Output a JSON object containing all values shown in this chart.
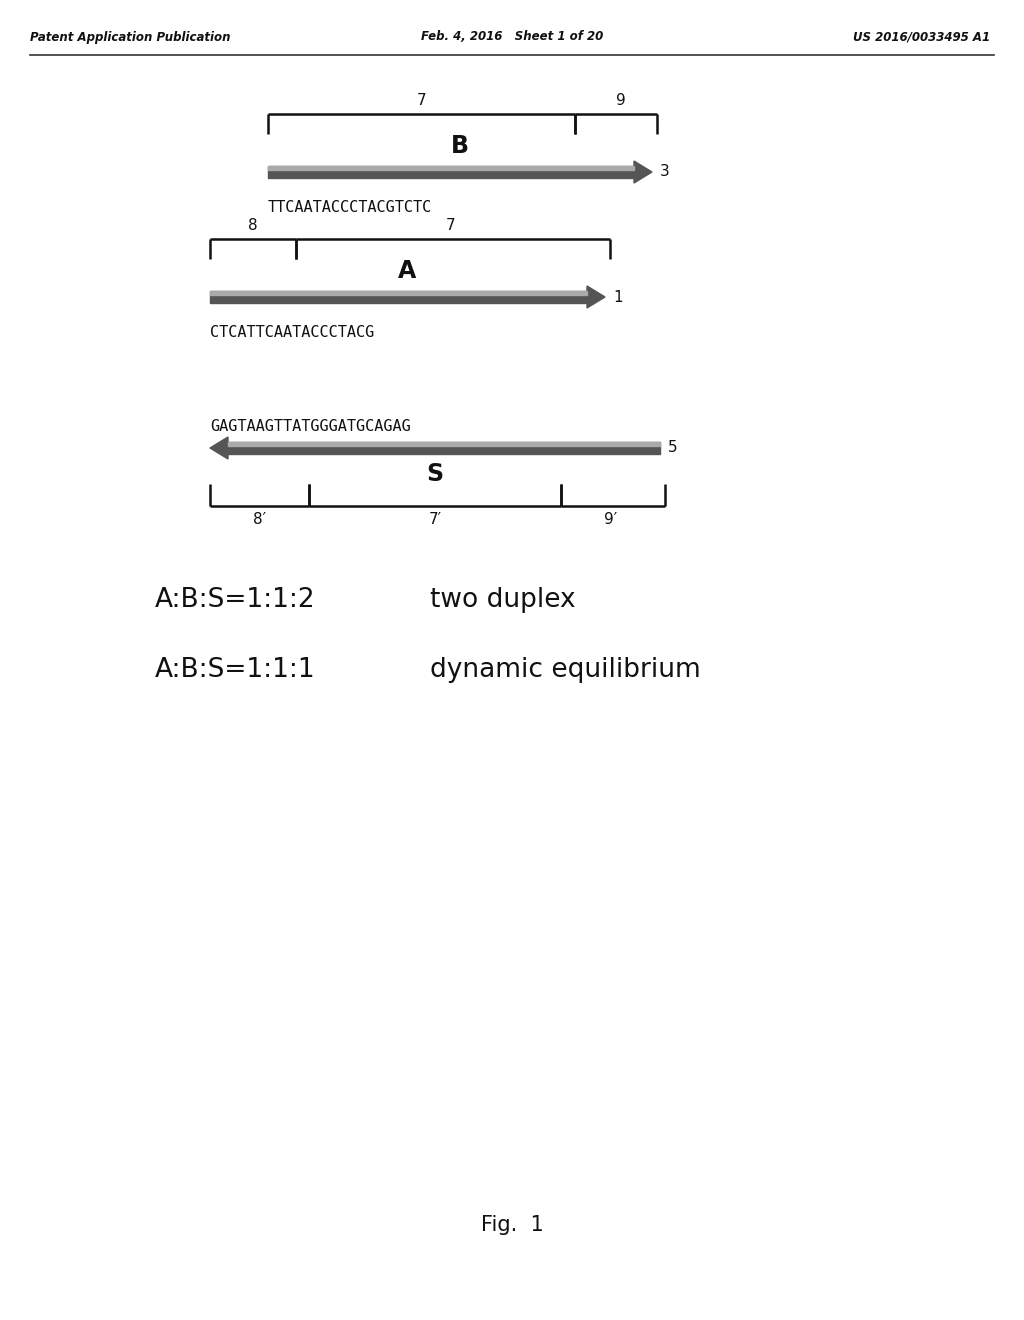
{
  "header_left": "Patent Application Publication",
  "header_center": "Feb. 4, 2016   Sheet 1 of 20",
  "header_right": "US 2016/0033495 A1",
  "header_fontsize": 8.5,
  "strand_B_seq": "TTCAATACCCTACGTCTC",
  "strand_A_seq": "CTCATTCAATACCCTACG",
  "strand_S_seq": "GAGTAAGTTATGGGATGCAGAG",
  "label_B": "B",
  "label_A": "A",
  "label_S": "S",
  "fig1_caption": "Fig.  1",
  "line1_eq": "A:B:S=1:1:2",
  "line1_desc": "two duplex",
  "line2_eq": "A:B:S=1:1:1",
  "line2_desc": "dynamic equilibrium",
  "background": "#ffffff",
  "arrow_color_dark": "#555555",
  "arrow_color_light": "#aaaaaa",
  "bracket_color": "#111111",
  "seq_color": "#111111",
  "label_color": "#111111",
  "text_color": "#111111"
}
